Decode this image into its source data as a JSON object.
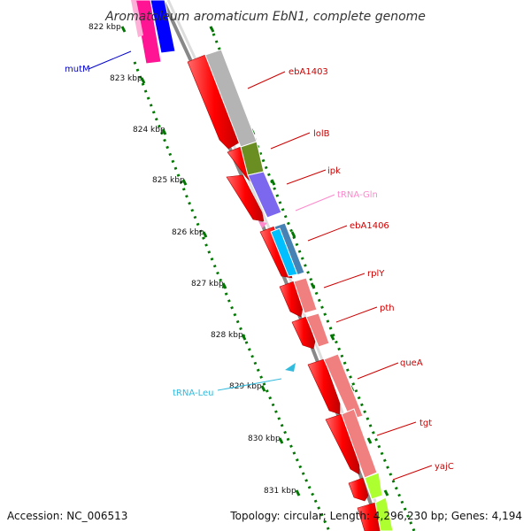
{
  "title": "Aromatoleum aromaticum EbN1, complete genome",
  "footer": {
    "accession": "Accession: NC_006513",
    "summary": "Topology: circular; Length: 4,296,230 bp; Genes: 4,194"
  },
  "ruler": [
    "822 kbp",
    "823 kbp",
    "824 kbp",
    "825 kbp",
    "826 kbp",
    "827 kbp",
    "828 kbp",
    "829 kbp",
    "830 kbp",
    "831 kbp"
  ],
  "gene_labels": {
    "mutM": "mutM",
    "ebA1403": "ebA1403",
    "lolB": "lolB",
    "ipk": "ipk",
    "trna_gln": "tRNA-Gln",
    "ebA1406": "ebA1406",
    "rplY": "rplY",
    "pth": "pth",
    "queA": "queA",
    "trna_leu": "tRNA-Leu",
    "tgt": "tgt",
    "yajC": "yajC"
  },
  "colors": {
    "gene": "#ff0000",
    "label_red": "#cc0000",
    "label_blue": "#0000cc",
    "trna_pink": "#ff88cc",
    "trna_cyan": "#33bbdd",
    "tick_green": "#007700",
    "backbone": "#888888",
    "cog_gray": "#b4b4b4",
    "cog_olive": "#6b8e23",
    "cog_purple": "#7b68ee",
    "cog_steelblue": "#4682b4",
    "cog_pink": "#f08080",
    "cog_lime": "#adff2f",
    "mutM_magenta": "#ff1493",
    "mutM_blue": "#0000ff"
  }
}
